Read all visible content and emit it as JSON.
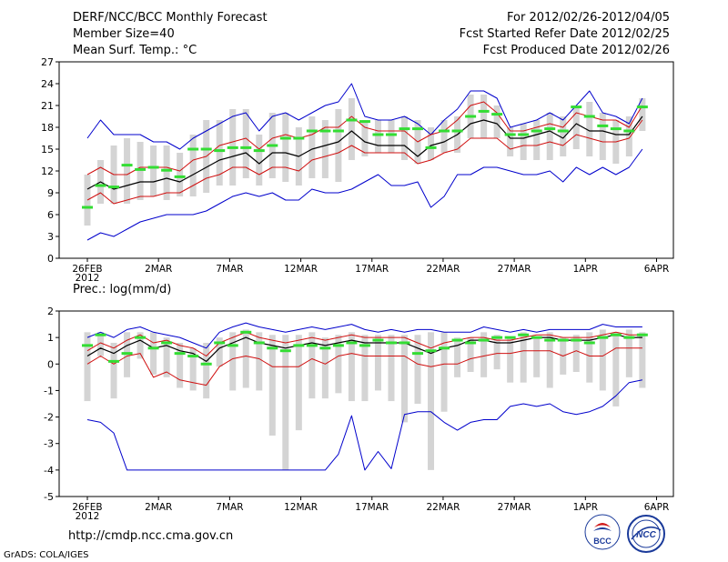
{
  "header": {
    "title": "DERF/NCC/BCC Monthly Forecast",
    "member_size": "Member Size=40",
    "variable": "Mean Surf. Temp.: °C",
    "period": "For 2012/02/26-2012/04/05",
    "refer_date": "Fcst Started Refer Date 2012/02/25",
    "produced_date": "Fcst Produced Date 2012/02/26"
  },
  "footer": {
    "url": "http://cmdp.ncc.cma.gov.cn",
    "grads": "GrADS: COLA/IGES",
    "logo_bcc": "BCC",
    "logo_ncc": "NCC"
  },
  "colors": {
    "box": "#d4d4d4",
    "mean": "#000000",
    "spread": "#d01010",
    "range": "#0000cc",
    "obs": "#33dd33"
  },
  "chart_data": [
    {
      "type": "line",
      "title": "",
      "ylabel": "Mean Surf. Temp.: °C",
      "ylim": [
        0,
        27
      ],
      "yticks": [
        0,
        3,
        6,
        9,
        12,
        15,
        18,
        21,
        24,
        27
      ],
      "x_tick_labels": [
        "26FEB",
        "2MAR",
        "7MAR",
        "12MAR",
        "17MAR",
        "22MAR",
        "27MAR",
        "1APR",
        "6APR"
      ],
      "x_tick_days": [
        0,
        5,
        10,
        15,
        20,
        25,
        30,
        35,
        40
      ],
      "x_sub_label": "2012",
      "xlim": [
        0,
        40
      ],
      "days": 39,
      "series": [
        {
          "name": "max",
          "values": [
            16.5,
            19,
            17,
            17,
            17,
            16,
            16,
            15,
            16.5,
            17.5,
            18.5,
            19.5,
            20,
            17.5,
            19.5,
            20,
            19,
            20,
            21,
            21.5,
            24,
            19.5,
            19,
            19,
            19.5,
            18.5,
            17,
            19,
            20.5,
            23,
            23,
            22,
            18,
            18.5,
            19,
            20,
            19,
            21,
            23,
            20,
            19.5,
            18.5,
            22
          ]
        },
        {
          "name": "upper",
          "values": [
            11.5,
            12.5,
            11.5,
            11.5,
            12.5,
            12.5,
            12.5,
            12,
            13.5,
            14,
            15.5,
            16,
            16.5,
            15,
            16.5,
            17,
            16.5,
            17,
            18,
            18,
            19.5,
            18,
            17.5,
            17.5,
            17.5,
            16,
            17,
            17.5,
            19,
            21,
            21.5,
            20,
            17.5,
            17.5,
            18,
            18.5,
            18,
            20,
            19.5,
            19,
            19,
            18,
            21
          ]
        },
        {
          "name": "mean",
          "values": [
            9.5,
            10.5,
            9.5,
            10,
            10.5,
            10.5,
            11,
            10.5,
            11.5,
            12.5,
            13.5,
            14,
            14.5,
            13,
            14.5,
            14.5,
            14,
            15,
            15.5,
            16,
            17.5,
            16,
            15.5,
            15.5,
            15.5,
            14,
            15.5,
            16,
            17,
            18.5,
            19,
            18.5,
            16.5,
            16.5,
            17,
            17.5,
            16.5,
            18.5,
            17.5,
            17.5,
            17,
            17,
            19.5
          ]
        },
        {
          "name": "lower",
          "values": [
            8,
            9,
            7.5,
            8,
            8.5,
            8.5,
            9,
            9,
            10,
            11,
            11.5,
            12.5,
            12.5,
            11.5,
            12.5,
            12.5,
            12,
            13.5,
            14,
            14.5,
            15.5,
            14.5,
            14.5,
            14.5,
            14.5,
            13,
            13.5,
            14.5,
            15,
            16.5,
            16.5,
            16.5,
            15,
            15.5,
            15.5,
            16,
            15.5,
            17,
            16.5,
            16,
            16,
            16.5,
            19
          ]
        },
        {
          "name": "min",
          "values": [
            2.5,
            3.5,
            3,
            4,
            5,
            5.5,
            6,
            6,
            6,
            6.5,
            7.5,
            8.5,
            9,
            8.5,
            9,
            8,
            8,
            9.5,
            9,
            9,
            9.5,
            10.5,
            11.5,
            10,
            10,
            10.5,
            7,
            8.5,
            11.5,
            11.5,
            12.5,
            12.5,
            12,
            11.5,
            11.5,
            12,
            10.5,
            12.5,
            11.5,
            12.5,
            11.5,
            12.5,
            15
          ]
        },
        {
          "name": "obs",
          "values": [
            7,
            10,
            9.8,
            12.8,
            12.2,
            12.5,
            12.1,
            11.2,
            15,
            15,
            14.8,
            15.2,
            15.2,
            14.8,
            15.5,
            16.5,
            16.5,
            17.5,
            17.5,
            17.5,
            19,
            18.8,
            17,
            17,
            17.8,
            17.8,
            15.2,
            17.5,
            17.5,
            19.5,
            20.2,
            19.8,
            17,
            17,
            17.5,
            17.8,
            17.5,
            20.8,
            19.5,
            18.2,
            17.8,
            17.5,
            20.8
          ]
        },
        {
          "name": "box_low",
          "values": [
            4.5,
            7.5,
            7.5,
            7.5,
            8,
            8.5,
            8,
            8.5,
            8.5,
            9,
            10,
            10,
            11,
            10,
            11,
            10.5,
            10,
            11,
            11,
            10.5,
            13.5,
            14,
            14.5,
            14.5,
            13.5,
            13,
            13.5,
            14.5,
            14.5,
            16.5,
            16.5,
            16.5,
            14,
            13.5,
            13.5,
            13.5,
            14,
            15,
            14,
            13.5,
            13,
            14,
            17.5
          ]
        },
        {
          "name": "box_high",
          "values": [
            11.5,
            13.5,
            15.5,
            16.5,
            16,
            15.5,
            15.5,
            14.5,
            17,
            19,
            19,
            20.5,
            20.5,
            17,
            20,
            20,
            18,
            19.5,
            19,
            20.5,
            22,
            19,
            19,
            19,
            19.5,
            19,
            18,
            19,
            19.5,
            22.5,
            22.5,
            21,
            18,
            18.5,
            19,
            20,
            19.5,
            21,
            21.5,
            20,
            19,
            19.5,
            22
          ]
        }
      ]
    },
    {
      "type": "line",
      "title": "Prec.: log(mm/d)",
      "ylabel": "Prec.: log(mm/d)",
      "ylim": [
        -5,
        2
      ],
      "yticks": [
        -5,
        -4,
        -3,
        -2,
        -1,
        0,
        1,
        2
      ],
      "x_tick_labels": [
        "26FEB",
        "2MAR",
        "7MAR",
        "12MAR",
        "17MAR",
        "22MAR",
        "27MAR",
        "1APR",
        "6APR"
      ],
      "x_tick_days": [
        0,
        5,
        10,
        15,
        20,
        25,
        30,
        35,
        40
      ],
      "x_sub_label": "2012",
      "xlim": [
        0,
        40
      ],
      "days": 39,
      "series": [
        {
          "name": "max",
          "values": [
            1.0,
            1.2,
            1.0,
            1.3,
            1.4,
            1.2,
            1.1,
            1.0,
            0.8,
            0.6,
            1.2,
            1.4,
            1.55,
            1.4,
            1.3,
            1.2,
            1.3,
            1.4,
            1.3,
            1.4,
            1.5,
            1.3,
            1.2,
            1.3,
            1.2,
            1.3,
            1.3,
            1.2,
            1.2,
            1.2,
            1.4,
            1.3,
            1.2,
            1.3,
            1.2,
            1.3,
            1.3,
            1.3,
            1.3,
            1.5,
            1.4,
            1.4,
            1.4
          ]
        },
        {
          "name": "upper",
          "values": [
            0.5,
            0.8,
            0.6,
            0.9,
            1.1,
            0.8,
            0.9,
            0.7,
            0.6,
            0.3,
            0.8,
            1.0,
            1.2,
            1.0,
            0.9,
            0.8,
            0.9,
            1.0,
            0.9,
            1.0,
            1.1,
            1.0,
            1.0,
            1.0,
            1.0,
            0.8,
            0.6,
            0.8,
            0.9,
            1.0,
            1.0,
            0.9,
            0.9,
            1.0,
            1.1,
            1.1,
            1.0,
            1.0,
            1.0,
            1.1,
            1.2,
            1.1,
            1.1
          ]
        },
        {
          "name": "mean",
          "values": [
            0.3,
            0.6,
            0.4,
            0.7,
            0.9,
            0.6,
            0.7,
            0.5,
            0.4,
            0.1,
            0.6,
            0.8,
            1.0,
            0.8,
            0.7,
            0.6,
            0.7,
            0.8,
            0.7,
            0.8,
            0.9,
            0.8,
            0.8,
            0.8,
            0.8,
            0.6,
            0.4,
            0.6,
            0.7,
            0.9,
            0.9,
            0.8,
            0.8,
            0.9,
            1.0,
            1.0,
            0.9,
            0.9,
            0.9,
            1.0,
            1.1,
            1.0,
            1.0
          ]
        },
        {
          "name": "lower",
          "values": [
            0.0,
            0.3,
            0.0,
            0.3,
            0.4,
            -0.5,
            -0.3,
            -0.6,
            -0.7,
            -0.8,
            -0.1,
            0.2,
            0.3,
            0.2,
            -0.1,
            -0.1,
            -0.1,
            0.2,
            0.0,
            0.3,
            0.4,
            0.3,
            0.3,
            0.3,
            0.3,
            0.0,
            -0.1,
            0.0,
            0.0,
            0.2,
            0.3,
            0.4,
            0.4,
            0.5,
            0.5,
            0.5,
            0.3,
            0.5,
            0.3,
            0.3,
            0.6,
            0.6,
            0.6
          ]
        },
        {
          "name": "min",
          "values": [
            -2.1,
            -2.2,
            -2.6,
            -4,
            -4,
            -4,
            -4,
            -4,
            -4,
            -4,
            -4,
            -4,
            -4,
            -4,
            -4,
            -4,
            -4,
            -4,
            -4,
            -3.4,
            -1.95,
            -4,
            -3.3,
            -3.95,
            -1.9,
            -1.8,
            -1.8,
            -2.2,
            -2.5,
            -2.2,
            -2.1,
            -2.1,
            -1.6,
            -1.5,
            -1.6,
            -1.5,
            -1.8,
            -1.9,
            -1.8,
            -1.6,
            -1.2,
            -0.7,
            -0.6
          ]
        },
        {
          "name": "obs",
          "values": [
            0.7,
            1.1,
            0.1,
            0.4,
            1.0,
            0.6,
            0.8,
            0.4,
            0.3,
            0.0,
            0.8,
            0.7,
            1.2,
            0.8,
            0.6,
            0.5,
            0.7,
            0.7,
            0.6,
            0.7,
            0.8,
            0.7,
            0.9,
            0.8,
            0.8,
            0.4,
            0.5,
            0.6,
            0.9,
            0.8,
            0.9,
            1.0,
            1.0,
            1.1,
            1.0,
            0.9,
            0.9,
            0.9,
            0.8,
            1.0,
            1.1,
            1.0,
            1.1
          ]
        },
        {
          "name": "box_low",
          "values": [
            -1.4,
            0.3,
            -1.3,
            -0.5,
            0.2,
            -0.4,
            -0.5,
            -0.9,
            -1.0,
            -1.3,
            -0.1,
            -1.0,
            -0.9,
            -1.0,
            -2.7,
            -4.0,
            -2.5,
            -1.3,
            -1.3,
            -1.1,
            -1.4,
            -1.4,
            -1.0,
            -1.4,
            -2.2,
            -1.5,
            -4.0,
            -1.8,
            -0.5,
            -0.3,
            -0.5,
            -0.2,
            -0.7,
            -0.7,
            -0.5,
            -0.9,
            -0.4,
            -0.3,
            -0.7,
            -1.0,
            -1.6,
            -0.5,
            -0.9
          ]
        },
        {
          "name": "box_high",
          "values": [
            1.2,
            1.2,
            0.8,
            1.2,
            1.2,
            1.2,
            1.0,
            0.8,
            0.6,
            0.8,
            1.0,
            1.2,
            1.3,
            1.2,
            1.1,
            1.1,
            1.1,
            1.2,
            1.0,
            1.1,
            1.2,
            1.1,
            1.1,
            1.1,
            1.1,
            1.1,
            1.2,
            1.2,
            1.0,
            1.0,
            1.2,
            1.1,
            1.0,
            1.2,
            1.0,
            1.2,
            1.0,
            1.1,
            1.2,
            1.3,
            1.2,
            1.3,
            1.2
          ]
        }
      ]
    }
  ]
}
